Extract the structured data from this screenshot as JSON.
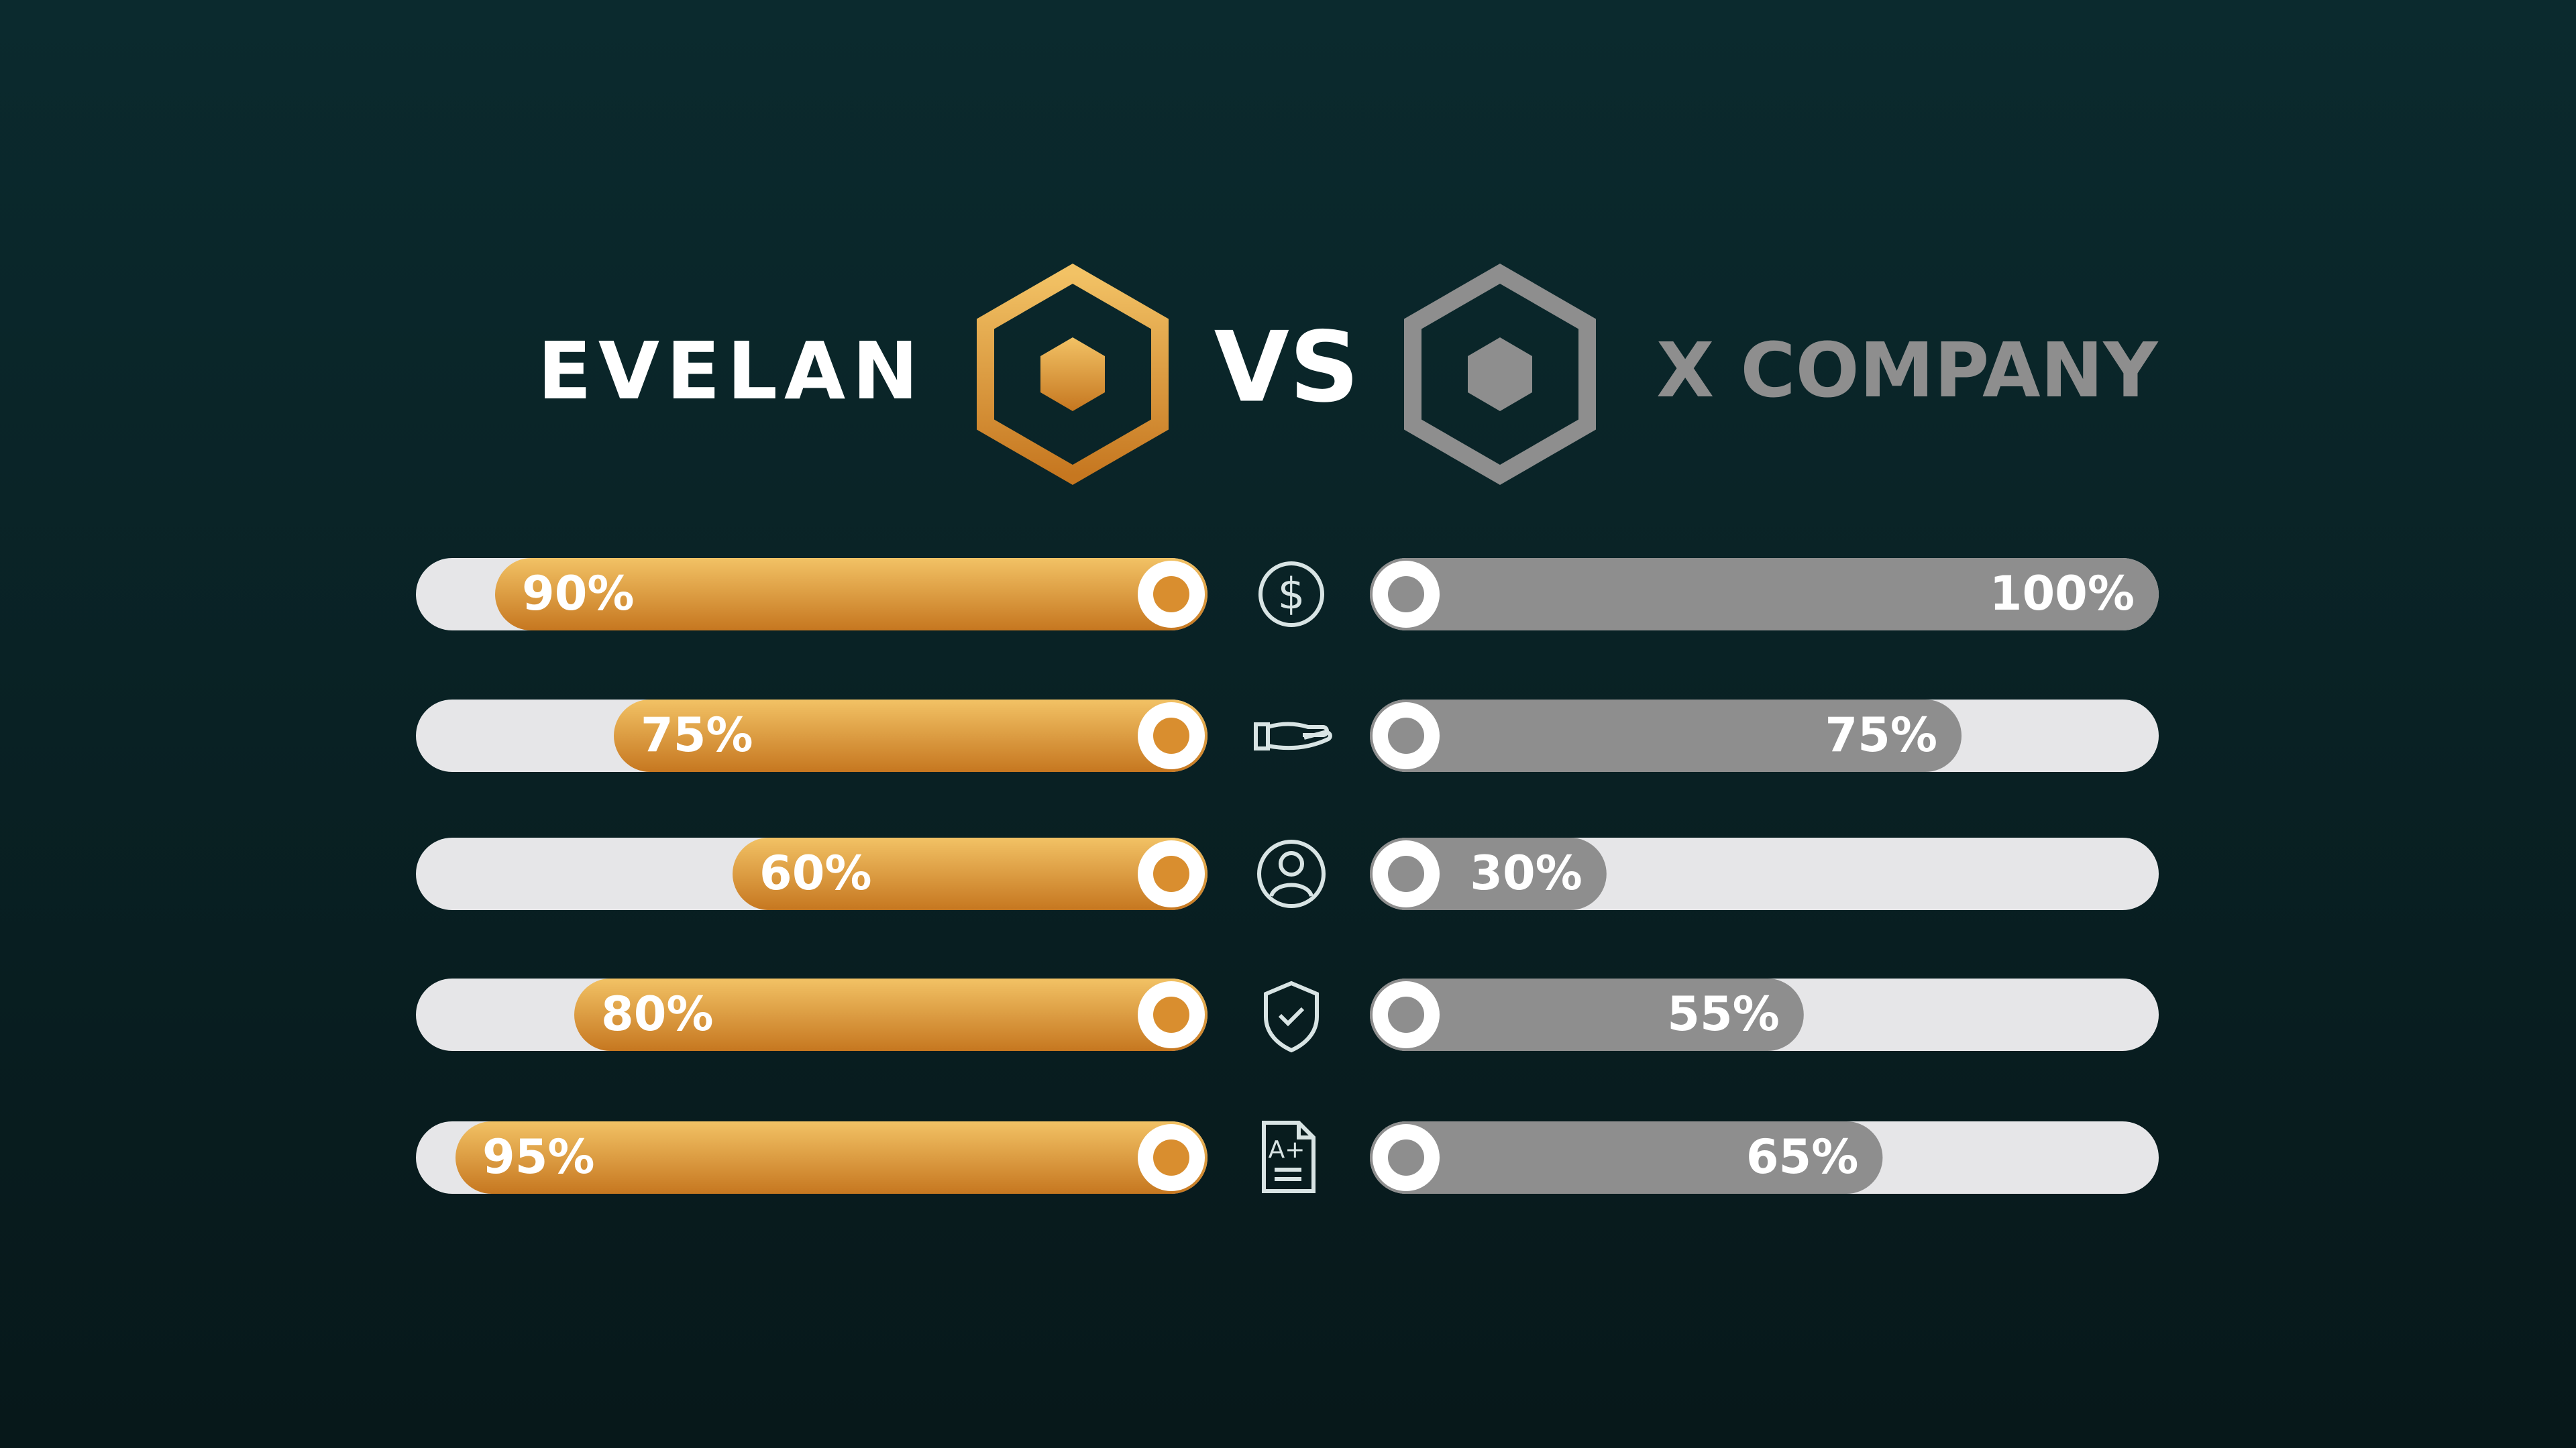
{
  "chart_data": {
    "type": "bar",
    "title": "VS",
    "series": [
      {
        "name": "EVELAN",
        "color": "#d98e2f",
        "values": [
          90,
          75,
          60,
          80,
          95
        ],
        "value_labels": [
          "90%",
          "75%",
          "60%",
          "80%",
          "95%"
        ]
      },
      {
        "name": "X COMPANY",
        "color": "#8e8e8e",
        "values": [
          100,
          75,
          30,
          55,
          65
        ],
        "value_labels": [
          "100%",
          "75%",
          "30%",
          "55%",
          "65%"
        ]
      }
    ],
    "xlim": [
      0,
      100
    ]
  }
}
